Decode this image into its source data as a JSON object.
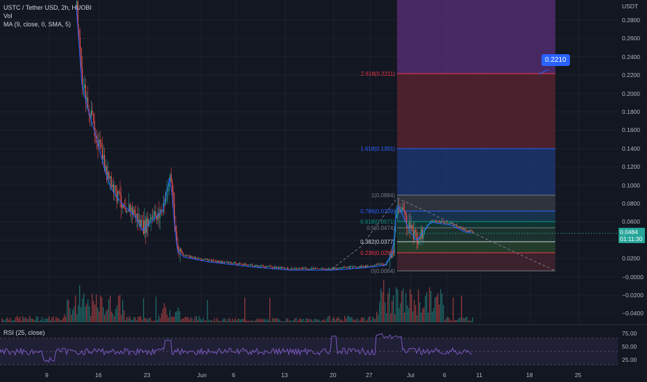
{
  "header": {
    "symbol_line": "USTC / Tether USD, 2h, HUOBI",
    "vol_label": "Vol",
    "ma_label": "MA (9, close, 0, SMA, 5)"
  },
  "rsi": {
    "label": "RSI (25, close)",
    "ticks": [
      "75.00",
      "50.00",
      "25.00"
    ]
  },
  "price_axis": {
    "currency": "USDT",
    "ticks": [
      "0.2800",
      "0.2600",
      "0.2400",
      "0.2200",
      "0.2000",
      "0.1800",
      "0.1600",
      "0.1400",
      "0.1200",
      "0.1000",
      "0.0800",
      "0.0600",
      "0.0400",
      "0.0200",
      "−0.0000",
      "−0.0200",
      "−0.0400"
    ]
  },
  "current_price": {
    "value": "0.0484",
    "countdown": "01:11:30"
  },
  "target_label": "0.2210",
  "time_axis": [
    "9",
    "16",
    "23",
    "Jun",
    "6",
    "13",
    "20",
    "27",
    "Jul",
    "6",
    "11",
    "18",
    "25"
  ],
  "fib_levels": [
    {
      "label": "2.618(0.2211)",
      "color": "#f23645"
    },
    {
      "label": "1.618(0.1391)",
      "color": "#2962ff"
    },
    {
      "label": "1(0.0884)",
      "color": "#787b86"
    },
    {
      "label": "0.786(0.0709)",
      "color": "#2962ff"
    },
    {
      "label": "0.618(0.0571)",
      "color": "#089981"
    },
    {
      "label": "0.5(0.0474)",
      "color": "#787b86"
    },
    {
      "label": "0.382(0.0377)",
      "color": "#d1d4dc"
    },
    {
      "label": "0.236(0.0258)",
      "color": "#f23645"
    },
    {
      "label": "0(0.0064)",
      "color": "#787b86"
    }
  ],
  "colors": {
    "up": "#26a69a",
    "down": "#ef5350",
    "rsi": "#7e57c2",
    "ma": "#2962ff"
  }
}
